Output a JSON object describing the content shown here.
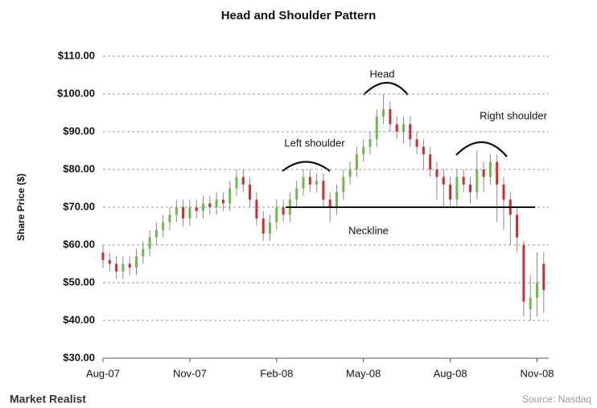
{
  "chart_data": {
    "type": "candlestick",
    "title": "Head and Shoulder Pattern",
    "y_label": "Share Price ($)",
    "categories": [
      "Aug-07",
      null,
      null,
      null,
      null,
      null,
      null,
      null,
      null,
      null,
      null,
      null,
      null,
      "Nov-07",
      null,
      null,
      null,
      null,
      null,
      null,
      null,
      null,
      null,
      null,
      null,
      null,
      "Feb-08",
      null,
      null,
      null,
      null,
      null,
      null,
      null,
      null,
      null,
      null,
      null,
      null,
      "May-08",
      null,
      null,
      null,
      null,
      null,
      null,
      null,
      null,
      null,
      null,
      null,
      null,
      "Aug-08",
      null,
      null,
      null,
      null,
      null,
      null,
      null,
      null,
      null,
      null,
      null,
      null,
      "Nov-08",
      null
    ],
    "open": [
      58,
      56,
      55,
      53,
      55,
      54,
      57,
      59,
      62,
      64,
      66,
      68,
      70,
      67,
      70,
      69,
      71,
      70,
      72,
      71,
      75,
      78,
      76,
      72,
      67,
      63,
      66,
      70,
      68,
      72,
      75,
      78,
      76,
      77,
      72,
      70,
      74,
      78,
      80,
      84,
      86,
      88,
      94,
      96,
      92,
      90,
      92,
      88,
      86,
      84,
      80,
      78,
      76,
      72,
      78,
      76,
      74,
      80,
      78,
      82,
      76,
      72,
      68,
      60,
      43,
      46,
      55
    ],
    "high": [
      60,
      58,
      57,
      57,
      57,
      59,
      61,
      64,
      66,
      68,
      70,
      72,
      72,
      72,
      72,
      73,
      73,
      74,
      74,
      77,
      80,
      80,
      78,
      74,
      69,
      68,
      72,
      72,
      74,
      77,
      80,
      80,
      79,
      79,
      74,
      76,
      80,
      82,
      86,
      88,
      90,
      96,
      100,
      98,
      94,
      94,
      94,
      90,
      88,
      86,
      82,
      80,
      78,
      80,
      80,
      78,
      85,
      82,
      84,
      84,
      78,
      74,
      70,
      61,
      52,
      58,
      58
    ],
    "low": [
      54,
      53,
      51,
      51,
      52,
      52,
      55,
      57,
      60,
      62,
      64,
      66,
      65,
      65,
      67,
      67,
      68,
      68,
      69,
      69,
      73,
      74,
      70,
      65,
      61,
      61,
      64,
      66,
      66,
      70,
      73,
      74,
      74,
      70,
      66,
      68,
      72,
      76,
      78,
      82,
      84,
      86,
      92,
      90,
      88,
      87,
      86,
      84,
      80,
      78,
      72,
      70,
      70,
      70,
      74,
      71,
      72,
      74,
      76,
      66,
      64,
      60,
      58,
      41,
      40,
      41,
      42
    ],
    "close": [
      56,
      55,
      53,
      55,
      54,
      57,
      59,
      62,
      64,
      66,
      68,
      70,
      67,
      70,
      69,
      71,
      70,
      72,
      71,
      75,
      78,
      76,
      72,
      67,
      63,
      66,
      70,
      68,
      72,
      75,
      78,
      76,
      77,
      72,
      70,
      74,
      78,
      80,
      84,
      86,
      88,
      94,
      96,
      92,
      90,
      92,
      88,
      86,
      84,
      80,
      78,
      76,
      72,
      78,
      76,
      74,
      80,
      78,
      82,
      76,
      72,
      68,
      62,
      45,
      46,
      50,
      48
    ],
    "up_color": "#6cbb4a",
    "down_color": "#d42a2a",
    "ylim": [
      30,
      110
    ],
    "yticks": [
      {
        "value": 30,
        "label": "$30.00"
      },
      {
        "value": 40,
        "label": "$40.00"
      },
      {
        "value": 50,
        "label": "$50.00"
      },
      {
        "value": 60,
        "label": "$60.00"
      },
      {
        "value": 70,
        "label": "$70.00"
      },
      {
        "value": 80,
        "label": "$80.00"
      },
      {
        "value": 90,
        "label": "$90.00"
      },
      {
        "value": 100,
        "label": "$100.00"
      },
      {
        "value": 110,
        "label": "$110.00"
      }
    ],
    "grid": true,
    "neckline": 70,
    "annotations": {
      "head": "Head",
      "left_shoulder": "Left shoulder",
      "right_shoulder": "Right shoulder",
      "neckline": "Neckline"
    },
    "source": "Source: Nasdaq",
    "brand": "Market Realist"
  }
}
